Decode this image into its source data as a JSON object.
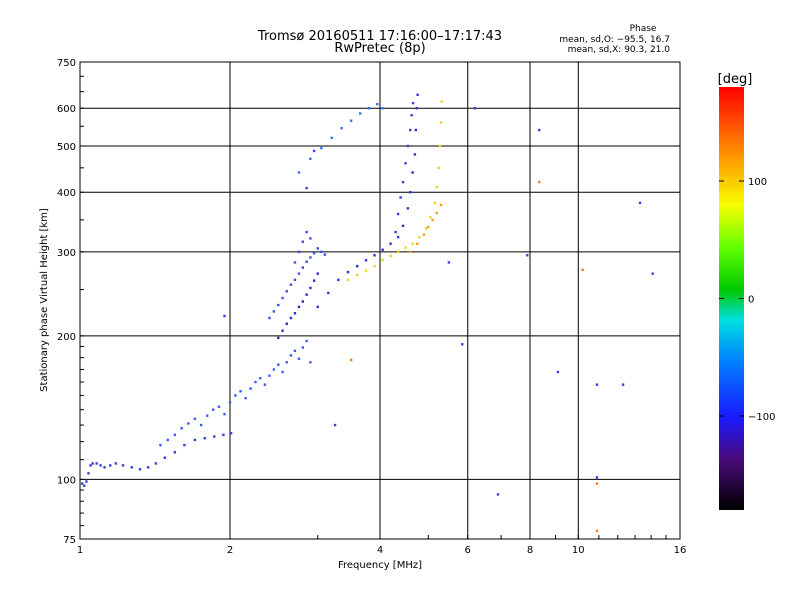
{
  "chart_data": {
    "type": "scatter",
    "title": "Tromsø 20160511 17:16:00–17:17:43",
    "subtitle": "RwPretec (8p)",
    "xlabel": "Frequency [MHz]",
    "ylabel": "Stationary phase Virtual Height [km]",
    "x_scale": "log",
    "y_scale": "log",
    "xlim": [
      1,
      16
    ],
    "ylim": [
      75,
      750
    ],
    "x_ticks": [
      1,
      2,
      4,
      6,
      8,
      10,
      16
    ],
    "y_ticks": [
      75,
      100,
      200,
      300,
      400,
      500,
      600,
      750
    ],
    "grid": true,
    "phase_box": {
      "heading": "Phase",
      "line_o": "mean, sd,O: −95.5, 16.7",
      "line_x": "mean, sd,X:  90.3, 21.0"
    },
    "colorbar": {
      "label": "[deg]",
      "range": [
        -180,
        180
      ],
      "ticks": [
        100,
        0,
        -100
      ]
    },
    "series": [
      {
        "trace": "o_low_E",
        "color": "#2f3fe0",
        "phase_deg": -100,
        "x": [
          1.01,
          1.02,
          1.03,
          1.04,
          1.05,
          1.06,
          1.08,
          1.1,
          1.12,
          1.15,
          1.18,
          1.22,
          1.27,
          1.32,
          1.37,
          1.42,
          1.48,
          1.55,
          1.62,
          1.7,
          1.78,
          1.86,
          1.94,
          2.01
        ],
        "y": [
          98,
          97,
          99,
          103,
          107,
          108,
          108,
          107,
          106,
          107,
          108,
          107,
          106,
          105,
          106,
          108,
          111,
          114,
          118,
          121,
          122,
          123,
          124,
          125
        ]
      },
      {
        "trace": "o_low_spread",
        "color": "#3a5cff",
        "phase_deg": -90,
        "x": [
          1.45,
          1.5,
          1.55,
          1.6,
          1.65,
          1.7,
          1.75,
          1.8,
          1.85,
          1.9,
          1.95,
          2.0,
          2.05,
          2.1,
          2.15,
          2.2,
          2.25,
          2.3,
          2.35,
          2.4,
          2.45,
          2.5,
          2.55,
          2.6,
          2.65,
          2.7,
          2.75,
          2.8,
          2.85,
          2.9
        ],
        "y": [
          118,
          121,
          124,
          128,
          131,
          134,
          130,
          136,
          140,
          142,
          137,
          145,
          150,
          153,
          148,
          155,
          160,
          163,
          158,
          165,
          170,
          174,
          168,
          176,
          182,
          186,
          179,
          189,
          195,
          176
        ]
      },
      {
        "trace": "o_F1_cusp",
        "color": "#2030c8",
        "phase_deg": -110,
        "x": [
          2.5,
          2.55,
          2.6,
          2.65,
          2.7,
          2.75,
          2.8,
          2.85,
          2.9,
          2.95,
          3.0
        ],
        "y": [
          198,
          205,
          212,
          218,
          223,
          230,
          236,
          244,
          252,
          261,
          270
        ]
      },
      {
        "trace": "o_F_upper_spread",
        "color": "#3b4fe8",
        "phase_deg": -100,
        "x": [
          2.4,
          2.45,
          2.5,
          2.55,
          2.6,
          2.65,
          2.7,
          2.75,
          2.8,
          2.85,
          2.9,
          2.95,
          3.0,
          3.05,
          3.1,
          2.7,
          2.75,
          2.8,
          2.85,
          2.9
        ],
        "y": [
          218,
          225,
          232,
          240,
          248,
          256,
          262,
          270,
          278,
          286,
          292,
          298,
          305,
          300,
          296,
          285,
          300,
          315,
          330,
          320
        ]
      },
      {
        "trace": "o_F2_main",
        "color": "#2a34d4",
        "phase_deg": -105,
        "x": [
          3.0,
          3.15,
          3.3,
          3.45,
          3.6,
          3.75,
          3.9,
          4.05,
          4.2,
          4.35,
          4.45,
          4.55,
          4.6,
          4.65,
          4.7,
          4.72,
          4.74,
          4.76
        ],
        "y": [
          230,
          246,
          262,
          272,
          280,
          288,
          295,
          303,
          312,
          322,
          340,
          370,
          400,
          440,
          480,
          540,
          600,
          640
        ]
      },
      {
        "trace": "o_F2_trailing",
        "color": "#3040e0",
        "phase_deg": -100,
        "x": [
          4.3,
          4.35,
          4.4,
          4.45,
          4.5,
          4.55,
          4.6,
          4.63,
          4.66
        ],
        "y": [
          330,
          360,
          390,
          420,
          460,
          500,
          540,
          580,
          615
        ]
      },
      {
        "trace": "o_F2_top_arc",
        "color": "#3a6cff",
        "phase_deg": -85,
        "x": [
          2.75,
          2.9,
          3.05,
          3.2,
          3.35,
          3.5,
          3.65,
          3.8,
          3.95,
          4.05
        ],
        "y": [
          440,
          470,
          495,
          520,
          545,
          565,
          585,
          600,
          612,
          600
        ]
      },
      {
        "trace": "x_F2",
        "color": "#f2d21a",
        "phase_deg": 90,
        "x": [
          3.45,
          3.6,
          3.75,
          3.9,
          4.05,
          4.2,
          4.35,
          4.5,
          4.65,
          4.8,
          4.95,
          5.05,
          5.15,
          5.2,
          5.25,
          5.28,
          5.3,
          5.32
        ],
        "y": [
          262,
          268,
          274,
          280,
          288,
          294,
          300,
          306,
          312,
          322,
          336,
          355,
          380,
          410,
          450,
          500,
          560,
          620
        ]
      },
      {
        "trace": "x_orange_patch",
        "color": "#ff9a1a",
        "phase_deg": 120,
        "x": [
          4.6,
          4.75,
          4.9,
          5.0,
          5.1,
          5.2,
          5.3
        ],
        "y": [
          300,
          312,
          326,
          338,
          350,
          362,
          376
        ]
      },
      {
        "trace": "isolated",
        "color": "#3040e0",
        "phase_deg": -100,
        "x": [
          2.85,
          2.95,
          1.95,
          5.85,
          7.9,
          8.35,
          9.1,
          10.9,
          10.9,
          12.3,
          13.3,
          14.1,
          6.9,
          5.5,
          6.2,
          3.25
        ],
        "y": [
          408,
          488,
          220,
          192,
          295,
          540,
          168,
          101,
          158,
          158,
          380,
          270,
          93,
          285,
          600,
          130
        ]
      },
      {
        "trace": "isolated_warm",
        "color": "#ff7a1a",
        "phase_deg": 130,
        "x": [
          8.35,
          10.2,
          10.9,
          10.9,
          3.5
        ],
        "y": [
          420,
          275,
          98,
          78,
          178
        ]
      }
    ]
  }
}
